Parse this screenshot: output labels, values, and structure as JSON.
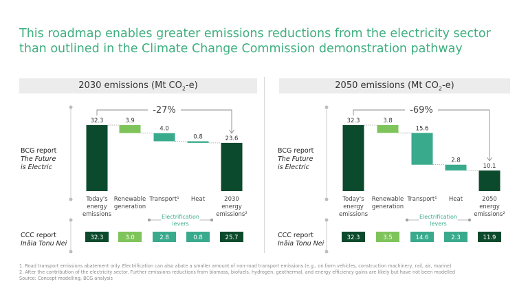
{
  "title": "This roadmap enables greater emissions reductions from the electricity sector than outlined in the Climate Change Commission demonstration pathway",
  "colors": {
    "title": "#3fae7f",
    "dark_green": "#0c4a2d",
    "light_green": "#7fc45a",
    "teal": "#3aaa8c",
    "header_bg": "#ececec"
  },
  "bcg_label": {
    "line1": "BCG report",
    "line2": "The Future",
    "line3": "is Electric"
  },
  "ccc_label": {
    "line1": "CCC report",
    "line2": "Ināia Tonu Nei"
  },
  "electrification_label": "Electrification levers",
  "footnotes": [
    "1. Road transport emissions abatement only. Electrification can also abate a smaller amount of non-road transport emissions (e.g., on farm vehicles, construction machinery, rail, air, marine)",
    "2. After the contribution of the electricity sector. Further emissions reductions from biomass, biofuels, hydrogen, geothermal, and energy efficiency gains are likely but have not been modelled",
    "Source: Concept modelling, BCG analysis"
  ],
  "chart_data": [
    {
      "type": "waterfall",
      "title_pre": "2030 emissions (Mt CO",
      "title_sub": "2",
      "title_post": "-e)",
      "change_label": "-27%",
      "ylim": [
        0,
        34
      ],
      "categories": [
        [
          "Today's",
          "energy",
          "emissions"
        ],
        [
          "Renewable",
          "generation"
        ],
        [
          "Transport¹"
        ],
        [
          "Heat"
        ],
        [
          "2030",
          "energy",
          "emissions²"
        ]
      ],
      "steps": [
        {
          "kind": "total",
          "value": 32.3,
          "label": "32.3"
        },
        {
          "kind": "decrease",
          "value": 3.9,
          "label": "3.9"
        },
        {
          "kind": "decrease",
          "value": 4.0,
          "label": "4.0"
        },
        {
          "kind": "decrease",
          "value": 0.8,
          "label": "0.8"
        },
        {
          "kind": "total",
          "value": 23.6,
          "label": "23.6"
        }
      ],
      "ccc_values": [
        "32.3",
        "3.0",
        "2.8",
        "0.8",
        "25.7"
      ]
    },
    {
      "type": "waterfall",
      "title_pre": "2050 emissions (Mt CO",
      "title_sub": "2",
      "title_post": "-e)",
      "change_label": "-69%",
      "ylim": [
        0,
        34
      ],
      "categories": [
        [
          "Today's",
          "energy",
          "emissions"
        ],
        [
          "Renewable",
          "generation"
        ],
        [
          "Transport¹"
        ],
        [
          "Heat"
        ],
        [
          "2050",
          "energy",
          "emissions²"
        ]
      ],
      "steps": [
        {
          "kind": "total",
          "value": 32.3,
          "label": "32.3"
        },
        {
          "kind": "decrease",
          "value": 3.8,
          "label": "3.8"
        },
        {
          "kind": "decrease",
          "value": 15.6,
          "label": "15.6"
        },
        {
          "kind": "decrease",
          "value": 2.8,
          "label": "2.8"
        },
        {
          "kind": "total",
          "value": 10.1,
          "label": "10.1"
        }
      ],
      "ccc_values": [
        "32.3",
        "3.5",
        "14.6",
        "2.3",
        "11.9"
      ]
    }
  ]
}
